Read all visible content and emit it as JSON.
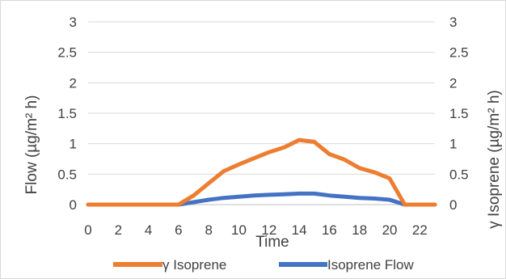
{
  "chart_data": {
    "type": "line",
    "title": "",
    "xlabel": "Time",
    "ylabel_left": "Flow (µg/m² h)",
    "ylabel_right": "γ Isoprene (µg/m² h)",
    "x": [
      0,
      1,
      2,
      3,
      4,
      5,
      6,
      7,
      8,
      9,
      10,
      11,
      12,
      13,
      14,
      15,
      16,
      17,
      18,
      19,
      20,
      21,
      22,
      23
    ],
    "x_ticks": [
      "0",
      "2",
      "4",
      "6",
      "8",
      "10",
      "12",
      "14",
      "16",
      "18",
      "20",
      "22"
    ],
    "y_ticks": [
      "0",
      "0.5",
      "1",
      "1.5",
      "2",
      "2.5",
      "3"
    ],
    "y_right_ticks": [
      "0",
      "0.5",
      "1",
      "1.5",
      "2",
      "2.5",
      "3"
    ],
    "ylim": [
      0,
      3
    ],
    "grid": true,
    "legend_position": "bottom",
    "series": [
      {
        "name": "γ Isoprene",
        "color": "#ED7D31",
        "values": [
          0,
          0,
          0,
          0,
          0,
          0,
          0,
          0.15,
          0.35,
          0.55,
          0.66,
          0.76,
          0.86,
          0.94,
          1.06,
          1.03,
          0.83,
          0.74,
          0.6,
          0.53,
          0.43,
          0,
          0,
          0
        ]
      },
      {
        "name": "Isoprene Flow",
        "color": "#4472C4",
        "values": [
          0,
          0,
          0,
          0,
          0,
          0,
          0,
          0.04,
          0.08,
          0.11,
          0.13,
          0.15,
          0.16,
          0.17,
          0.18,
          0.18,
          0.15,
          0.13,
          0.11,
          0.1,
          0.08,
          0,
          0,
          0
        ]
      }
    ]
  }
}
